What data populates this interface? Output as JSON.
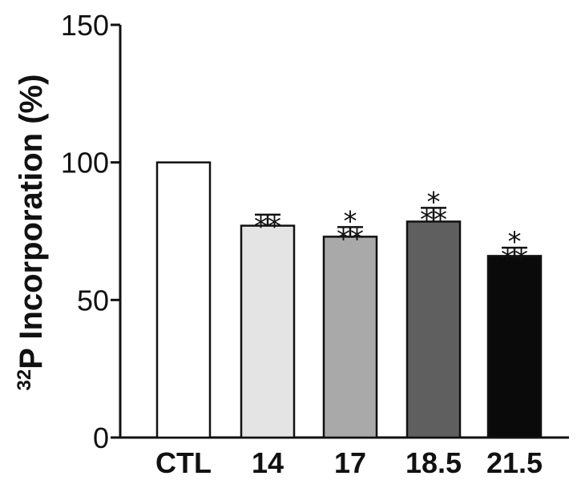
{
  "chart_data": {
    "type": "bar",
    "categories": [
      "CTL",
      "14",
      "17",
      "18.5",
      "21.5"
    ],
    "values": [
      100,
      77,
      73,
      78.5,
      66
    ],
    "errors": [
      0,
      4,
      3.5,
      5,
      3
    ],
    "significance": [
      "",
      "**",
      "*\n**",
      "*\n**",
      "*\n**"
    ],
    "bar_colors": [
      "#ffffff",
      "#e4e4e4",
      "#a9a9a9",
      "#5f5f5f",
      "#0a0a0a"
    ],
    "ylabel_sup": "32",
    "ylabel": "P Incorporation (%)",
    "xlabel": "",
    "title": "",
    "ylim": [
      0,
      150
    ],
    "yticks": [
      0,
      50,
      100,
      150
    ],
    "grid": false
  }
}
